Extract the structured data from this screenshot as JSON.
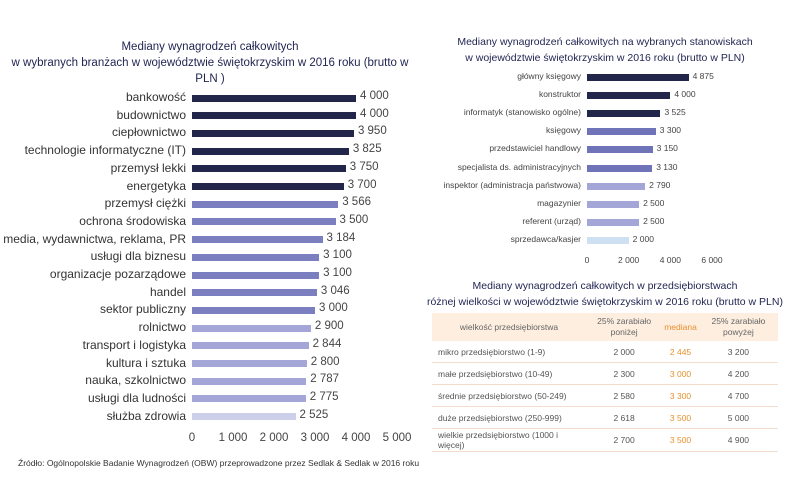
{
  "chart_data": [
    {
      "type": "bar",
      "orientation": "horizontal",
      "title": "Mediany wynagrodzeń całkowitych\nw wybranych branżach w województwie świętokrzyskim w 2016 roku (brutto w PLN )",
      "categories": [
        "bankowość",
        "budownictwo",
        "ciepłownictwo",
        "technologie informatyczne (IT)",
        "przemysł lekki",
        "energetyka",
        "przemysł ciężki",
        "ochrona środowiska",
        "media, wydawnictwa, reklama, PR",
        "usługi dla biznesu",
        "organizacje pozarządowe",
        "handel",
        "sektor publiczny",
        "rolnictwo",
        "transport i logistyka",
        "kultura i sztuka",
        "nauka, szkolnictwo",
        "usługi dla ludności",
        "służba zdrowia"
      ],
      "values": [
        4000,
        4000,
        3950,
        3825,
        3750,
        3700,
        3566,
        3500,
        3184,
        3100,
        3100,
        3046,
        3000,
        2900,
        2844,
        2800,
        2787,
        2775,
        2525
      ],
      "value_labels": [
        "4 000",
        "4 000",
        "3 950",
        "3 825",
        "3 750",
        "3 700",
        "3 566",
        "3 500",
        "3 184",
        "3 100",
        "3 100",
        "3 046",
        "3 000",
        "2 900",
        "2 844",
        "2 800",
        "2 787",
        "2 775",
        "2 525"
      ],
      "colors": [
        "#22264a",
        "#22264a",
        "#22264a",
        "#22264a",
        "#22264a",
        "#22264a",
        "#7b7fc0",
        "#7b7fc0",
        "#7b7fc0",
        "#7b7fc0",
        "#7b7fc0",
        "#7b7fc0",
        "#7b7fc0",
        "#a3a6d6",
        "#a3a6d6",
        "#a3a6d6",
        "#a3a6d6",
        "#a3a6d6",
        "#cdd0ea"
      ],
      "xlim": [
        0,
        5000
      ],
      "ticks": [
        0,
        1000,
        2000,
        3000,
        4000,
        5000
      ],
      "tick_labels": [
        "0",
        "1 000",
        "2 000",
        "3 000",
        "4 000",
        "5 000"
      ]
    },
    {
      "type": "bar",
      "orientation": "horizontal",
      "title": "Mediany wynagrodzeń całkowitych  na wybranych stanowiskach\nw województwie świętokrzyskim w 2016 roku (brutto  w PLN)",
      "categories": [
        "główny księgowy",
        "konstruktor",
        "informatyk (stanowisko ogólne)",
        "księgowy",
        "przedstawiciel handlowy",
        "specjalista ds. administracyjnych",
        "inspektor (administracja państwowa)",
        "magazynier",
        "referent (urząd)",
        "sprzedawca/kasjer"
      ],
      "values": [
        4875,
        4000,
        3525,
        3300,
        3150,
        3130,
        2790,
        2500,
        2500,
        2000
      ],
      "value_labels": [
        "4 875",
        "4 000",
        "3 525",
        "3 300",
        "3 150",
        "3 130",
        "2 790",
        "2 500",
        "2 500",
        "2 000"
      ],
      "colors": [
        "#22264a",
        "#22264a",
        "#22264a",
        "#6f74b8",
        "#6f74b8",
        "#6f74b8",
        "#a3a6d6",
        "#a3a6d6",
        "#a3a6d6",
        "#cfe0f2"
      ],
      "xlim": [
        0,
        6000
      ],
      "ticks": [
        0,
        2000,
        4000,
        6000
      ],
      "tick_labels": [
        "0",
        "2 000",
        "4 000",
        "6 000"
      ]
    },
    {
      "type": "table",
      "title": "Mediany wynagrodzeń całkowitych w   przedsiębiorstwach\nróżnej wielkości w województwie świętokrzyskim w  2016 roku (brutto w PLN)",
      "columns": [
        "wielkość przedsiębiorstwa",
        "25% zarabiało poniżej",
        "mediana",
        "25% zarabiało powyżej"
      ],
      "rows": [
        [
          "mikro przedsiębiorstwo (1-9)",
          "2 000",
          "2 445",
          "3 200"
        ],
        [
          "małe przedsiębiorstwo (10-49)",
          "2 300",
          "3 000",
          "4 200"
        ],
        [
          "średnie przedsiębiorstwo (50-249)",
          "2 580",
          "3 300",
          "4 700"
        ],
        [
          "duże przedsiębiorstwo (250-999)",
          "2 618",
          "3 500",
          "5 000"
        ],
        [
          "wielkie przedsiębiorstwo (1000 i więcej)",
          "2 700",
          "3 500",
          "4 900"
        ]
      ],
      "accent": "#e8902e",
      "header_bg": "#fdeee0"
    }
  ],
  "source": "Źródło: Ogólnopolskie Badanie Wynagrodzeń (OBW) przeprowadzone przez Sedlak & Sedlak w 2016  roku"
}
